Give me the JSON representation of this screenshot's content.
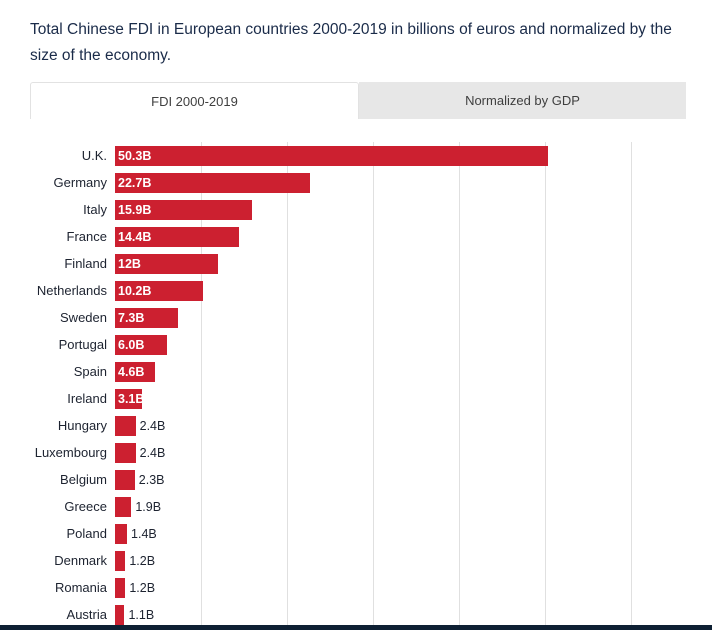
{
  "header": {
    "title": "Total Chinese FDI in European countries 2000-2019 in billions of euros and normalized by the size of the economy."
  },
  "tabs": [
    {
      "label": "FDI 2000-2019",
      "active": true
    },
    {
      "label": "Normalized by GDP",
      "active": false
    }
  ],
  "chart_data": {
    "type": "bar",
    "orientation": "horizontal",
    "title": "Total Chinese FDI in European countries 2000-2019",
    "unit": "billions of euros",
    "categories": [
      "U.K.",
      "Germany",
      "Italy",
      "France",
      "Finland",
      "Netherlands",
      "Sweden",
      "Portugal",
      "Spain",
      "Ireland",
      "Hungary",
      "Luxembourg",
      "Belgium",
      "Greece",
      "Poland",
      "Denmark",
      "Romania",
      "Austria"
    ],
    "values": [
      50.3,
      22.7,
      15.9,
      14.4,
      12,
      10.2,
      7.3,
      6.0,
      4.6,
      3.1,
      2.4,
      2.4,
      2.3,
      1.9,
      1.4,
      1.2,
      1.2,
      1.1
    ],
    "value_labels": [
      "50.3B",
      "22.7B",
      "15.9B",
      "14.4B",
      "12B",
      "10.2B",
      "7.3B",
      "6.0B",
      "4.6B",
      "3.1B",
      "2.4B",
      "2.4B",
      "2.3B",
      "1.9B",
      "1.4B",
      "1.2B",
      "1.2B",
      "1.1B"
    ],
    "xlim": [
      0,
      60
    ],
    "gridline_interval": 10,
    "grid": true,
    "legend": "none",
    "label_inside_threshold": 3,
    "bar_color": "#cc2030"
  },
  "colors": {
    "bar": "#cc2030",
    "title_text": "#1a2b49",
    "tab_inactive_bg": "#e7e7e7",
    "gridline": "#e0e0e0",
    "footer_bar": "#0e2033"
  }
}
